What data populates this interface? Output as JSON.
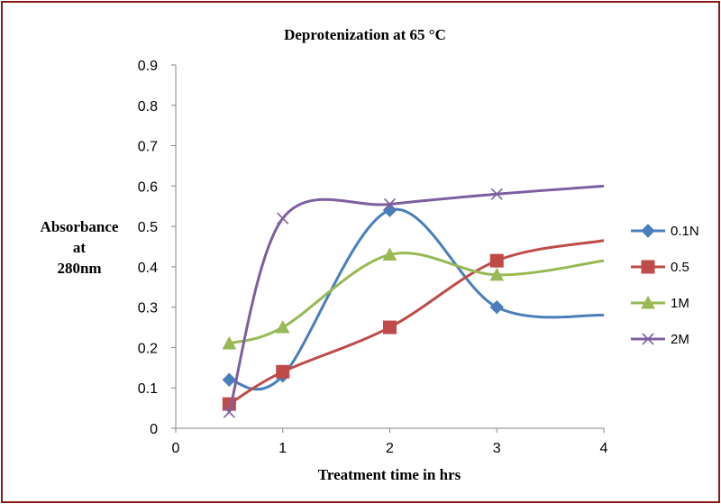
{
  "chart_data": {
    "type": "line",
    "title": "Deprotenization at 65 °C",
    "xlabel": "Treatment  time in hrs",
    "ylabel": [
      "Absorbance",
      "at",
      "280nm"
    ],
    "xlim": [
      0,
      4
    ],
    "ylim": [
      0,
      0.9
    ],
    "xticks": [
      "0",
      "1",
      "2",
      "3",
      "4"
    ],
    "yticks": [
      "0",
      "0.1",
      "0.2",
      "0.3",
      "0.4",
      "0.5",
      "0.6",
      "0.7",
      "0.8",
      "0.9"
    ],
    "grid": false,
    "legend_position": "right",
    "series": [
      {
        "name": "0.1N",
        "color": "#4A7EBB",
        "marker": "diamond",
        "x": [
          0.5,
          1,
          2,
          3,
          4
        ],
        "values": [
          0.12,
          0.13,
          0.54,
          0.3,
          0.28
        ]
      },
      {
        "name": "0.5",
        "color": "#BE4B48",
        "marker": "square",
        "x": [
          0.5,
          1,
          2,
          3,
          4
        ],
        "values": [
          0.06,
          0.14,
          0.25,
          0.415,
          0.465
        ]
      },
      {
        "name": "1M",
        "color": "#98B954",
        "marker": "triangle",
        "x": [
          0.5,
          1,
          2,
          3,
          4
        ],
        "values": [
          0.21,
          0.25,
          0.43,
          0.38,
          0.415
        ]
      },
      {
        "name": "2M",
        "color": "#7D5FA0",
        "marker": "x",
        "x": [
          0.5,
          1,
          2,
          3,
          4
        ],
        "values": [
          0.04,
          0.52,
          0.555,
          0.58,
          0.6
        ]
      }
    ]
  }
}
